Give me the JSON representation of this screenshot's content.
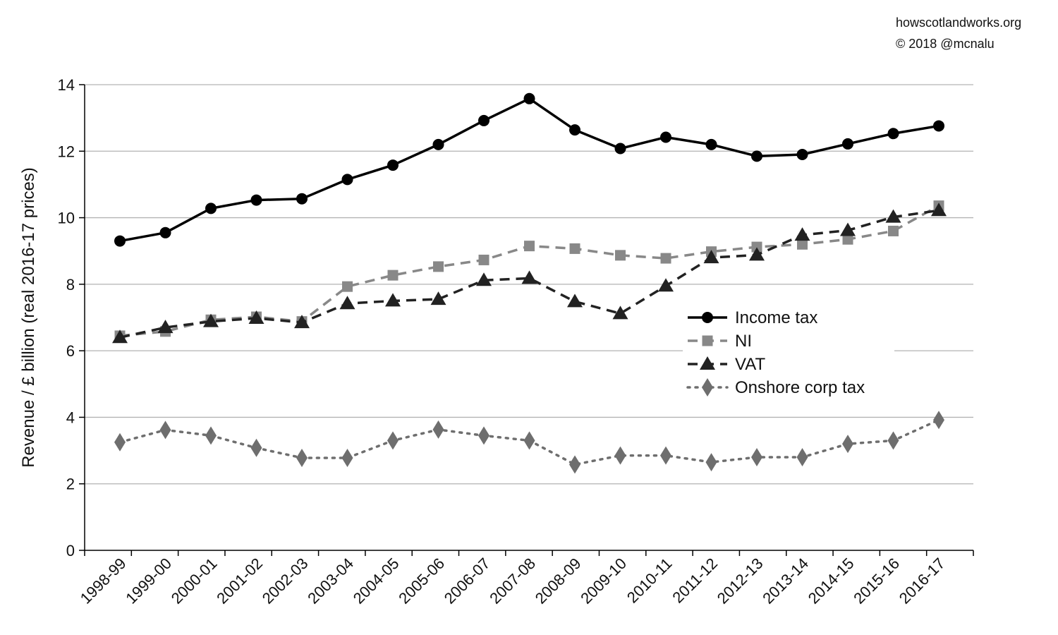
{
  "credits": {
    "site": "howscotlandworks.org",
    "copyright": "© 2018  @mcnalu"
  },
  "chart_data": {
    "type": "line",
    "title": "",
    "xlabel": "",
    "ylabel": "Revenue / £ billion (real 2016-17 prices)",
    "ylim": [
      0,
      14
    ],
    "yticks": [
      0,
      2,
      4,
      6,
      8,
      10,
      12,
      14
    ],
    "grid": "horizontal",
    "legend_position": "right-center",
    "categories": [
      "1998-99",
      "1999-00",
      "2000-01",
      "2001-02",
      "2002-03",
      "2003-04",
      "2004-05",
      "2005-06",
      "2006-07",
      "2007-08",
      "2008-09",
      "2009-10",
      "2010-11",
      "2011-12",
      "2012-13",
      "2013-14",
      "2014-15",
      "2015-16",
      "2016-17"
    ],
    "series": [
      {
        "name": "Income tax",
        "values": [
          9.3,
          9.55,
          10.28,
          10.53,
          10.57,
          11.15,
          11.58,
          12.2,
          12.92,
          13.58,
          12.64,
          12.08,
          12.42,
          12.2,
          11.85,
          11.9,
          12.22,
          12.53,
          12.76
        ],
        "color": "#000000",
        "line_style": "solid",
        "marker": "circle"
      },
      {
        "name": "NI",
        "values": [
          6.45,
          6.58,
          6.93,
          7.02,
          6.88,
          7.93,
          8.27,
          8.53,
          8.73,
          9.15,
          9.07,
          8.87,
          8.78,
          8.98,
          9.12,
          9.2,
          9.35,
          9.6,
          10.36
        ],
        "color": "#888888",
        "line_style": "dashed",
        "marker": "square"
      },
      {
        "name": "VAT",
        "values": [
          6.4,
          6.7,
          6.88,
          6.98,
          6.85,
          7.42,
          7.5,
          7.55,
          8.12,
          8.18,
          7.48,
          7.12,
          7.95,
          8.8,
          8.88,
          9.48,
          9.62,
          10.02,
          10.22
        ],
        "color": "#222222",
        "line_style": "dashed",
        "marker": "triangle"
      },
      {
        "name": "Onshore corp tax",
        "values": [
          3.25,
          3.62,
          3.45,
          3.08,
          2.78,
          2.78,
          3.3,
          3.63,
          3.45,
          3.3,
          2.58,
          2.85,
          2.85,
          2.65,
          2.8,
          2.8,
          3.2,
          3.3,
          3.92
        ],
        "color": "#6e6e6e",
        "line_style": "dotted",
        "marker": "diamond"
      }
    ]
  }
}
